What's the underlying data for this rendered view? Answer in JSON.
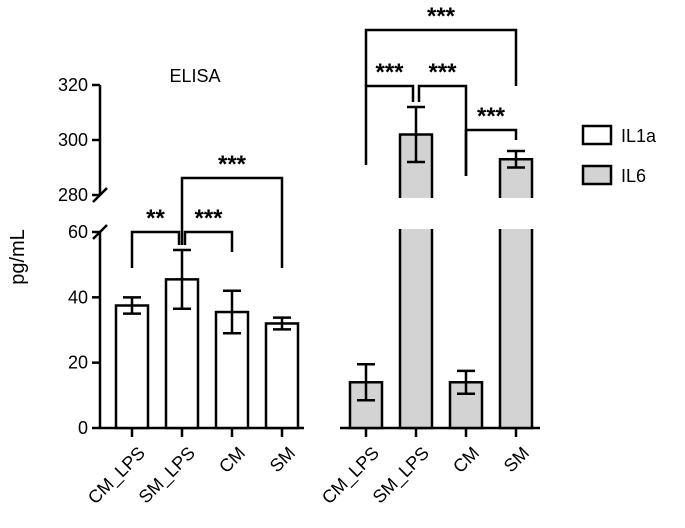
{
  "chart_data": {
    "type": "bar",
    "title": "ELISA",
    "ylabel": "pg/mL",
    "xlabel": "",
    "axis_break": {
      "lower_range": [
        0,
        60
      ],
      "upper_range": [
        280,
        320
      ]
    },
    "yticks_lower": [
      "0",
      "20",
      "40",
      "60"
    ],
    "yticks_upper": [
      "280",
      "300",
      "320"
    ],
    "groups": [
      {
        "series": "IL1a",
        "fill": "#ffffff",
        "categories": [
          "CM_LPS",
          "SM_LPS",
          "CM",
          "SM"
        ],
        "values": [
          37.5,
          45.5,
          35.5,
          32
        ],
        "errors": [
          2.5,
          9,
          6.5,
          1.8
        ]
      },
      {
        "series": "IL6",
        "fill": "#d3d3d3",
        "categories": [
          "CM_LPS",
          "SM_LPS",
          "CM",
          "SM"
        ],
        "values": [
          14,
          302,
          14,
          293
        ],
        "errors": [
          5.5,
          10,
          3.5,
          3
        ]
      }
    ],
    "legend": {
      "position": "right",
      "entries": [
        {
          "label": "IL1a",
          "fill": "#ffffff"
        },
        {
          "label": "IL6",
          "fill": "#d3d3d3"
        }
      ]
    },
    "significance": [
      {
        "group": 0,
        "from": 0,
        "to": 1,
        "label": "**"
      },
      {
        "group": 0,
        "from": 1,
        "to": 2,
        "label": "***"
      },
      {
        "group": 0,
        "from": 1,
        "to": 3,
        "label": "***"
      },
      {
        "group": 1,
        "from": 0,
        "to": 1,
        "label": "***"
      },
      {
        "group": 1,
        "from": 1,
        "to": 2,
        "label": "***"
      },
      {
        "group": 1,
        "from": 2,
        "to": 3,
        "label": "***"
      },
      {
        "group": 1,
        "from": 0,
        "to": 3,
        "label": "***"
      }
    ]
  }
}
